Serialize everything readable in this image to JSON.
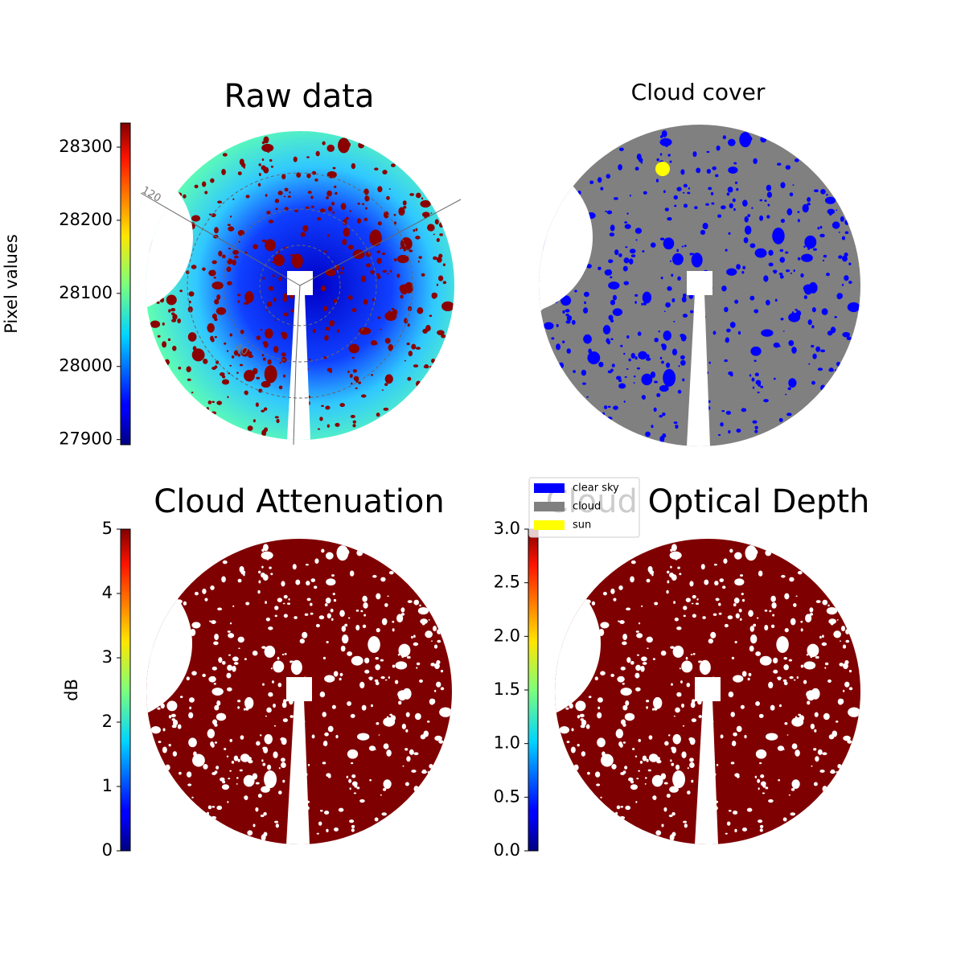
{
  "panels": [
    {
      "title": "Raw data",
      "colorbar": {
        "label": "Pixel values",
        "lim": [
          27893,
          28333
        ],
        "ticks": [
          27900,
          28000,
          28100,
          28200,
          28300
        ]
      }
    },
    {
      "title": "Cloud cover",
      "legend": [
        {
          "name": "clear sky",
          "color": "#0000ff"
        },
        {
          "name": "cloud",
          "color": "#808080"
        },
        {
          "name": "sun",
          "color": "#ffff00"
        }
      ]
    },
    {
      "title": "Cloud Attenuation",
      "colorbar": {
        "label": "dB",
        "lim": [
          0,
          5
        ],
        "ticks": [
          0,
          1,
          2,
          3,
          4,
          5
        ]
      }
    },
    {
      "title": "Cloud Optical Depth",
      "colorbar": {
        "lim": [
          0,
          3
        ],
        "ticks": [
          {
            "value": 0,
            "label": "0.0"
          },
          {
            "value": 0.5,
            "label": "0.5"
          },
          {
            "value": 1,
            "label": "1.0"
          },
          {
            "value": 1.5,
            "label": "1.5"
          },
          {
            "value": 2,
            "label": "2.0"
          },
          {
            "value": 2.5,
            "label": "2.5"
          },
          {
            "value": 3,
            "label": "3.0"
          }
        ]
      }
    }
  ],
  "annotations": [
    "120",
    "40"
  ]
}
